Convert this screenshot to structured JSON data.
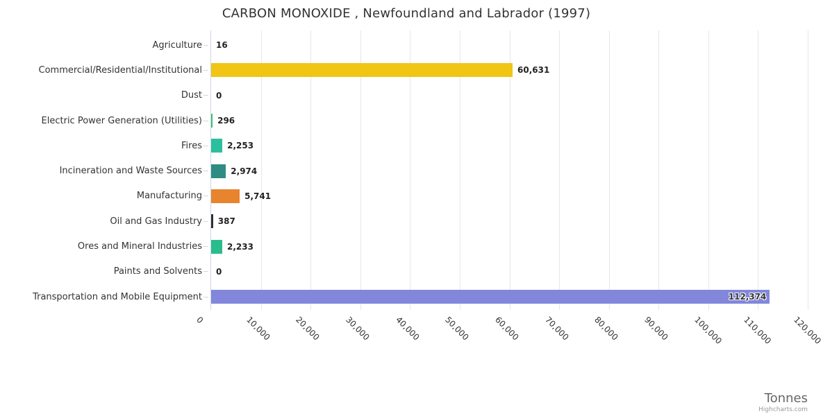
{
  "title": "CARBON MONOXIDE , Newfoundland and Labrador (1997)",
  "credit": "Highcharts.com",
  "chart_data": {
    "type": "bar",
    "orientation": "horizontal",
    "title": "CARBON MONOXIDE , Newfoundland and Labrador (1997)",
    "xlabel": "Tonnes",
    "ylabel": "",
    "grid": true,
    "legend": false,
    "xlim": [
      0,
      120000
    ],
    "x_tick_interval": 10000,
    "x_label_rotation": 45,
    "x_tick_labels": [
      "0",
      "10,000",
      "20,000",
      "30,000",
      "40,000",
      "50,000",
      "60,000",
      "70,000",
      "80,000",
      "90,000",
      "100,000",
      "110,000",
      "120,000"
    ],
    "categories": [
      "Agriculture",
      "Commercial/Residential/Institutional",
      "Dust",
      "Electric Power Generation (Utilities)",
      "Fires",
      "Incineration and Waste Sources",
      "Manufacturing",
      "Oil and Gas Industry",
      "Ores and Mineral Industries",
      "Paints and Solvents",
      "Transportation and Mobile Equipment"
    ],
    "values": [
      16,
      60631,
      0,
      296,
      2253,
      2974,
      5741,
      387,
      2233,
      0,
      112374
    ],
    "value_labels": [
      "16",
      "60,631",
      "0",
      "296",
      "2,253",
      "2,974",
      "5,741",
      "387",
      "2,233",
      "0",
      "112,374"
    ],
    "bar_colors": [
      null,
      "#f0c514",
      null,
      "#34c46e",
      "#2cbf9d",
      "#2e8c84",
      "#e8842d",
      "#2f2f38",
      "#2abd8c",
      null,
      "#8287dc"
    ]
  },
  "colors": {
    "background": "#ffffff",
    "axis_line": "#ccd6eb",
    "gridline": "#e6e6e6",
    "tick": "#ccd6eb",
    "title_text": "#333333",
    "category_text": "#333333",
    "value_text": "#222222",
    "axis_label_text": "#333333",
    "axis_title_text": "#666666",
    "credit_text": "#999999"
  }
}
